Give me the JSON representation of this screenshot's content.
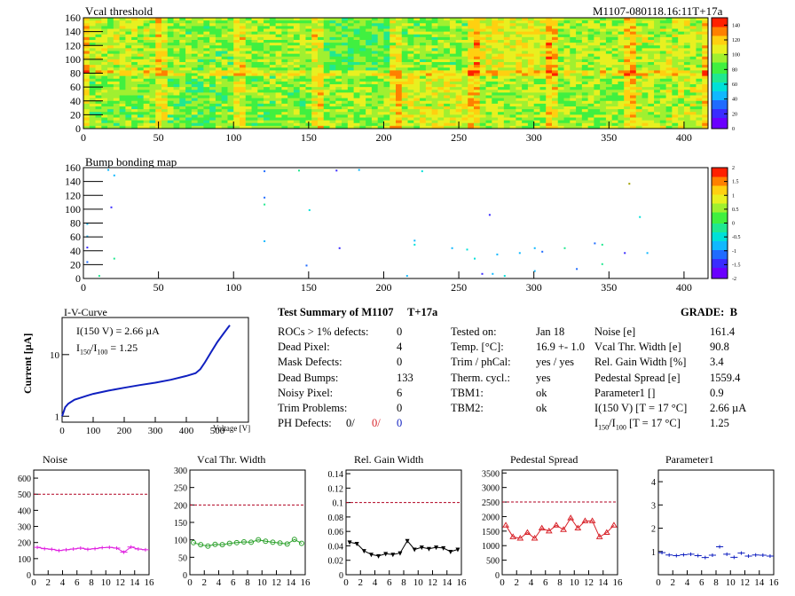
{
  "header": {
    "left_title": "Vcal threshold",
    "right_title": "M1107-080118.16:11T+17a"
  },
  "colors": {
    "accent_red": "#d8232a",
    "magenta": "#e020e0",
    "green": "#2aa02a",
    "blue": "#1020c0"
  },
  "chart_data": [
    {
      "type": "heatmap",
      "title": "Vcal threshold",
      "x_ticks": [
        "0",
        "50",
        "100",
        "150",
        "200",
        "250",
        "300",
        "350",
        "400"
      ],
      "y_ticks": [
        "0",
        "20",
        "40",
        "60",
        "80",
        "100",
        "120",
        "140",
        "160"
      ],
      "xlim": [
        0,
        416
      ],
      "ylim": [
        0,
        160
      ],
      "colorbar_ticks": [
        "0",
        "20",
        "40",
        "60",
        "80",
        "100",
        "120",
        "140"
      ],
      "colorbar_range": [
        0,
        150
      ]
    },
    {
      "type": "heatmap",
      "title": "Bump bonding map",
      "x_ticks": [
        "0",
        "50",
        "100",
        "150",
        "200",
        "250",
        "300",
        "350",
        "400"
      ],
      "y_ticks": [
        "0",
        "20",
        "40",
        "60",
        "80",
        "100",
        "120",
        "140",
        "160"
      ],
      "xlim": [
        0,
        416
      ],
      "ylim": [
        0,
        160
      ],
      "colorbar_ticks": [
        "-2",
        "-1.5",
        "-1",
        "-0.5",
        "0",
        "0.5",
        "1",
        "1.5",
        "2"
      ],
      "colorbar_range": [
        -2,
        2
      ]
    },
    {
      "type": "line",
      "title": "I-V-Curve",
      "xlabel": "Voltage [V]",
      "ylabel": "Current [µA]",
      "x_ticks": [
        "0",
        "100",
        "200",
        "300",
        "400",
        "500"
      ],
      "y_ticks": [
        "1",
        "10"
      ],
      "xlim": [
        0,
        600
      ],
      "ylim_log": [
        0.8,
        40
      ],
      "x": [
        0,
        10,
        20,
        40,
        60,
        80,
        100,
        150,
        200,
        250,
        300,
        350,
        400,
        430,
        445,
        460,
        480,
        500,
        520,
        540
      ],
      "y": [
        1.0,
        1.4,
        1.6,
        1.85,
        2.0,
        2.15,
        2.3,
        2.6,
        2.9,
        3.2,
        3.5,
        3.9,
        4.5,
        5.0,
        5.8,
        7.5,
        11,
        16,
        22,
        30
      ],
      "annotation_1": "I(150 V) = 2.66 µA",
      "annotation_2_main": "I",
      "annotation_2_sub1": "150",
      "annotation_2_mid": "/I",
      "annotation_2_sub2": "100",
      "annotation_2_tail": " =  1.25"
    },
    {
      "type": "line",
      "title": "Noise",
      "x_ticks": [
        "0",
        "2",
        "4",
        "6",
        "8",
        "10",
        "12",
        "14",
        "16"
      ],
      "y_ticks": [
        "0",
        "100",
        "200",
        "300",
        "400",
        "500",
        "600"
      ],
      "xlim": [
        0,
        16
      ],
      "ylim": [
        0,
        650
      ],
      "reference_line": 500,
      "series_color": "#e020e0",
      "x": [
        0,
        1,
        2,
        3,
        4,
        5,
        6,
        7,
        8,
        9,
        10,
        11,
        12,
        13,
        14,
        15
      ],
      "values": [
        170,
        162,
        158,
        150,
        155,
        160,
        165,
        158,
        162,
        168,
        170,
        165,
        140,
        172,
        160,
        155
      ]
    },
    {
      "type": "line",
      "title": "Vcal Thr. Width",
      "x_ticks": [
        "0",
        "2",
        "4",
        "6",
        "8",
        "10",
        "12",
        "14",
        "16"
      ],
      "y_ticks": [
        "0",
        "50",
        "100",
        "150",
        "200",
        "250",
        "300"
      ],
      "xlim": [
        0,
        16
      ],
      "ylim": [
        0,
        300
      ],
      "reference_line": 200,
      "series_color": "#2aa02a",
      "x": [
        0,
        1,
        2,
        3,
        4,
        5,
        6,
        7,
        8,
        9,
        10,
        11,
        12,
        13,
        14,
        15
      ],
      "values": [
        92,
        86,
        82,
        87,
        86,
        90,
        92,
        94,
        93,
        100,
        96,
        93,
        91,
        88,
        101,
        90
      ]
    },
    {
      "type": "line",
      "title": "Rel. Gain Width",
      "x_ticks": [
        "0",
        "2",
        "4",
        "6",
        "8",
        "10",
        "12",
        "14",
        "16"
      ],
      "y_ticks": [
        "0",
        "0.02",
        "0.04",
        "0.06",
        "0.08",
        "0.1",
        "0.12",
        "0.14"
      ],
      "xlim": [
        0,
        16
      ],
      "ylim": [
        0,
        0.145
      ],
      "reference_line": 0.1,
      "series_color": "#000000",
      "x": [
        0,
        1,
        2,
        3,
        4,
        5,
        6,
        7,
        8,
        9,
        10,
        11,
        12,
        13,
        14,
        15
      ],
      "values": [
        0.045,
        0.043,
        0.033,
        0.028,
        0.026,
        0.029,
        0.028,
        0.03,
        0.047,
        0.035,
        0.038,
        0.036,
        0.038,
        0.037,
        0.032,
        0.035
      ]
    },
    {
      "type": "line",
      "title": "Pedestal Spread",
      "x_ticks": [
        "0",
        "2",
        "4",
        "6",
        "8",
        "10",
        "12",
        "14",
        "16"
      ],
      "y_ticks": [
        "0",
        "500",
        "1000",
        "1500",
        "2000",
        "2500",
        "3000",
        "3500"
      ],
      "xlim": [
        0,
        16
      ],
      "ylim": [
        0,
        3600
      ],
      "reference_line": 2500,
      "series_color": "#d8232a",
      "x": [
        0,
        1,
        2,
        3,
        4,
        5,
        6,
        7,
        8,
        9,
        10,
        11,
        12,
        13,
        14,
        15
      ],
      "values": [
        1700,
        1300,
        1250,
        1450,
        1250,
        1600,
        1500,
        1700,
        1550,
        1950,
        1600,
        1850,
        1850,
        1300,
        1450,
        1700
      ]
    },
    {
      "type": "scatter",
      "title": "Parameter1",
      "x_ticks": [
        "0",
        "2",
        "4",
        "6",
        "8",
        "10",
        "12",
        "14",
        "16"
      ],
      "y_ticks": [
        "1",
        "2",
        "3",
        "4"
      ],
      "xlim": [
        0,
        16
      ],
      "ylim": [
        0,
        4.5
      ],
      "series_color": "#1020c0",
      "x": [
        0,
        1,
        2,
        3,
        4,
        5,
        6,
        7,
        8,
        9,
        10,
        11,
        12,
        13,
        14,
        15
      ],
      "values": [
        0.95,
        0.85,
        0.82,
        0.86,
        0.88,
        0.82,
        0.74,
        0.84,
        1.2,
        0.88,
        0.75,
        0.93,
        0.8,
        0.85,
        0.84,
        0.8
      ]
    }
  ],
  "summary": {
    "title": "Test Summary of M1107",
    "subtitle": "T+17a",
    "grade_label": "GRADE:",
    "grade_value": "B",
    "rows": [
      {
        "label": "ROCs > 1% defects:",
        "value": "0"
      },
      {
        "label": "Dead Pixel:",
        "value": "4"
      },
      {
        "label": "Mask Defects:",
        "value": "0"
      },
      {
        "label": "Dead Bumps:",
        "value": "133"
      },
      {
        "label": "Noisy Pixel:",
        "value": "6"
      },
      {
        "label": "Trim Problems:",
        "value": "0"
      }
    ],
    "ph_label": "PH Defects:",
    "ph_values": [
      "0/",
      "0/",
      "0"
    ],
    "mid_rows": [
      {
        "label": "Tested on:",
        "value": "Jan 18"
      },
      {
        "label": "Temp. [°C]:",
        "value": "16.9 +- 1.0"
      },
      {
        "label": "Trim / phCal:",
        "value": "yes / yes"
      },
      {
        "label": "Therm. cycl.:",
        "value": "yes"
      },
      {
        "label": "TBM1:",
        "value": "ok"
      },
      {
        "label": "TBM2:",
        "value": "ok"
      }
    ],
    "right_rows": [
      {
        "label": "Noise [e]",
        "value": "161.4"
      },
      {
        "label": "Vcal Thr. Width [e]",
        "value": "90.8"
      },
      {
        "label": "Rel. Gain Width [%]",
        "value": "3.4"
      },
      {
        "label": "Pedestal Spread [e]",
        "value": "1559.4"
      },
      {
        "label": "Parameter1 []",
        "value": "0.9"
      },
      {
        "label": "I(150 V) [T = 17 °C]",
        "value": "2.66 µA"
      }
    ],
    "ratio_row": {
      "main": "I",
      "sub1": "150",
      "mid": "/I",
      "sub2": "100",
      "tail": "  [T = 17 °C]",
      "value": "1.25"
    }
  }
}
